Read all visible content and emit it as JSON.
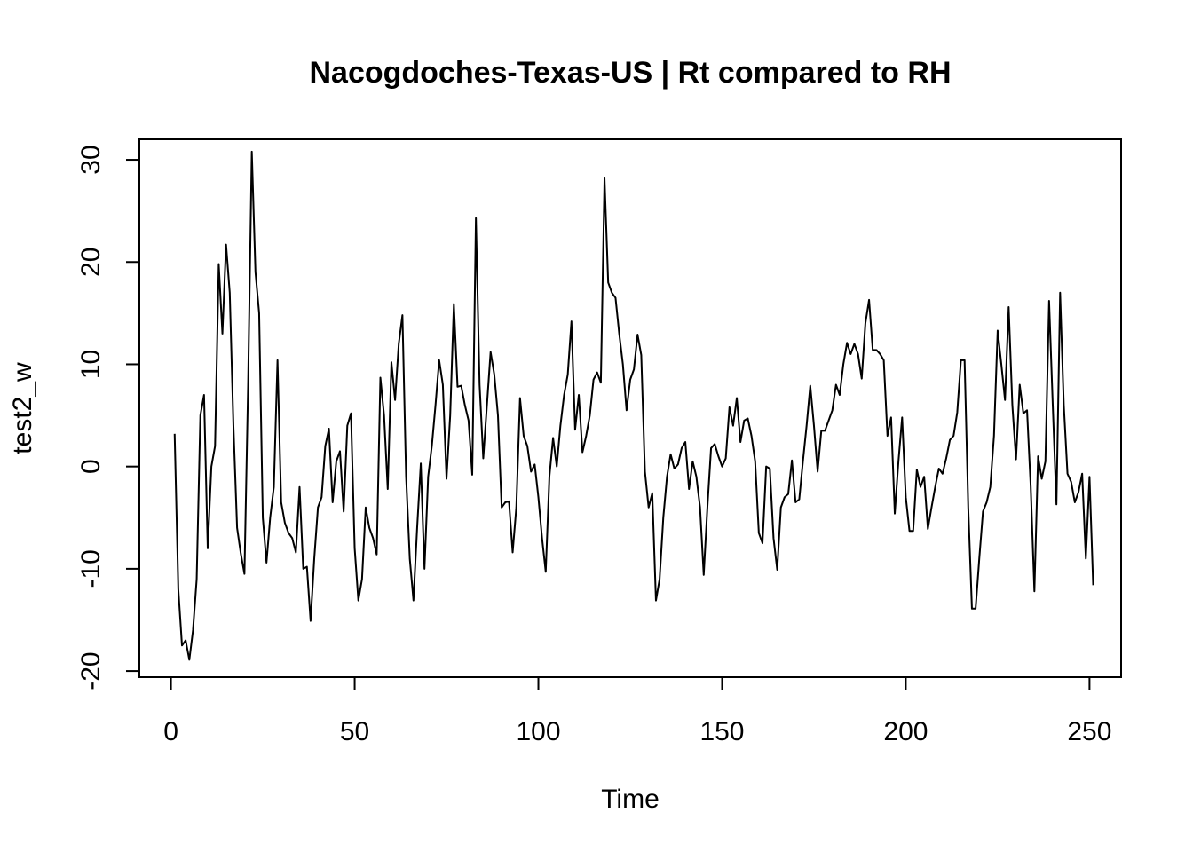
{
  "chart_data": {
    "type": "line",
    "title": "Nacogdoches-Texas-US | Rt compared to RH",
    "xlabel": "Time",
    "ylabel": "test2_w",
    "xlim": [
      -8.6,
      258.6
    ],
    "ylim": [
      -20.6,
      32.0
    ],
    "x_ticks": [
      0,
      50,
      100,
      150,
      200,
      250
    ],
    "x_tick_labels": [
      "0",
      "50",
      "100",
      "150",
      "200",
      "250"
    ],
    "y_ticks": [
      -20,
      -10,
      0,
      10,
      20,
      30
    ],
    "y_tick_labels": [
      "-20",
      "-10",
      "0",
      "10",
      "20",
      "30"
    ],
    "grid": false,
    "legend": "none",
    "line_color": "#000000",
    "x_start": 1,
    "x_step": 1,
    "values": [
      3.2,
      -12.0,
      -17.5,
      -17.0,
      -18.9,
      -16.0,
      -11.0,
      5.0,
      7.0,
      -8.0,
      0.0,
      2.0,
      19.8,
      13.0,
      21.7,
      17.0,
      4.0,
      -6.0,
      -8.5,
      -10.5,
      8.0,
      30.8,
      19.0,
      15.0,
      -5.0,
      -9.4,
      -5.0,
      -2.0,
      10.4,
      -3.5,
      -5.5,
      -6.5,
      -7.0,
      -8.4,
      -2.0,
      -10.0,
      -9.8,
      -15.1,
      -9.0,
      -4.0,
      -3.0,
      2.0,
      3.7,
      -3.5,
      0.5,
      1.5,
      -4.4,
      4.0,
      5.2,
      -8.0,
      -13.1,
      -11.0,
      -4.0,
      -6.0,
      -7.0,
      -8.6,
      8.7,
      5.0,
      -2.2,
      10.2,
      6.5,
      12.0,
      14.8,
      -1.0,
      -9.0,
      -13.1,
      -6.0,
      0.3,
      -10.0,
      -1.0,
      2.0,
      6.0,
      10.4,
      8.0,
      -1.2,
      5.0,
      15.9,
      7.8,
      7.9,
      6.0,
      4.5,
      -0.8,
      24.3,
      8.0,
      0.8,
      6.0,
      11.2,
      9.0,
      5.0,
      -4.0,
      -3.5,
      -3.4,
      -8.4,
      -4.0,
      6.7,
      3.0,
      2.0,
      -0.5,
      0.2,
      -3.0,
      -7.0,
      -10.3,
      -1.0,
      2.8,
      0.0,
      4.0,
      7.0,
      9.0,
      14.2,
      3.6,
      7.0,
      1.4,
      3.0,
      5.0,
      8.5,
      9.2,
      8.2,
      28.2,
      18.0,
      17.0,
      16.5,
      13.0,
      10.0,
      5.5,
      8.5,
      9.5,
      12.9,
      10.9,
      -0.5,
      -4.0,
      -2.6,
      -13.1,
      -11.0,
      -5.0,
      -1.0,
      1.2,
      -0.2,
      0.2,
      1.8,
      2.4,
      -2.2,
      0.5,
      -1.0,
      -4.0,
      -10.6,
      -4.0,
      1.8,
      2.2,
      1.0,
      0.0,
      0.8,
      5.8,
      4.0,
      6.7,
      2.4,
      4.5,
      4.7,
      3.0,
      0.5,
      -6.5,
      -7.5,
      0.0,
      -0.2,
      -7.0,
      -10.1,
      -4.0,
      -3.0,
      -2.7,
      0.6,
      -3.5,
      -3.2,
      0.5,
      4.0,
      7.9,
      4.0,
      -0.5,
      3.5,
      3.5,
      4.5,
      5.5,
      8.0,
      7.0,
      10.0,
      12.1,
      11.0,
      12.0,
      11.0,
      8.6,
      14.0,
      16.3,
      11.4,
      11.4,
      11.0,
      10.4,
      3.0,
      4.8,
      -4.6,
      0.5,
      4.8,
      -3.0,
      -6.3,
      -6.3,
      -0.3,
      -2.0,
      -1.0,
      -6.1,
      -4.0,
      -2.0,
      -0.2,
      -0.7,
      0.8,
      2.6,
      3.0,
      5.3,
      10.4,
      10.4,
      -4.0,
      -13.9,
      -13.9,
      -9.0,
      -4.4,
      -3.5,
      -2.0,
      3.0,
      13.3,
      10.0,
      6.5,
      15.6,
      6.0,
      0.7,
      8.0,
      5.2,
      5.5,
      -2.0,
      -12.2,
      1.0,
      -1.2,
      0.5,
      16.2,
      6.0,
      -3.7,
      17.0,
      6.0,
      -0.7,
      -1.5,
      -3.5,
      -2.5,
      -0.7,
      -9.0,
      -1.0,
      -11.6
    ]
  }
}
